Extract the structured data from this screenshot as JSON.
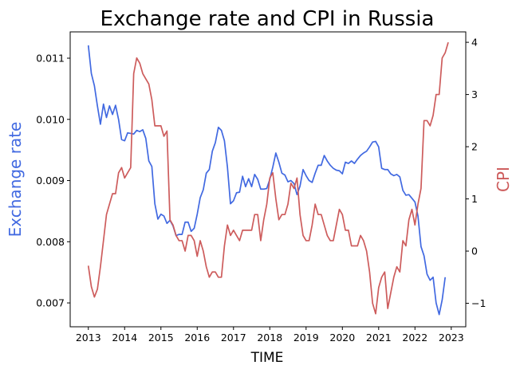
{
  "chart_data": {
    "type": "line",
    "title": "Exchange rate and CPI in Russia",
    "xlabel": "TIME",
    "ylabel_left": "Exchange rate",
    "ylabel_right": "CPI",
    "xlim": [
      2012.5,
      2023.4
    ],
    "ylim_left": [
      0.00661,
      0.01143
    ],
    "ylim_right": [
      -1.45,
      4.2
    ],
    "x_ticks": [
      "2013",
      "2014",
      "2015",
      "2016",
      "2017",
      "2018",
      "2019",
      "2020",
      "2021",
      "2022",
      "2023"
    ],
    "y_left_ticks": [
      "0.007",
      "0.008",
      "0.009",
      "0.010",
      "0.011"
    ],
    "y_right_ticks": [
      "−1",
      "0",
      "1",
      "2",
      "3",
      "4"
    ],
    "colors": {
      "left": "#4169e1",
      "right": "#cd5c5c"
    },
    "series": [
      {
        "axis": "left",
        "points": [
          [
            2013.0,
            0.01121
          ],
          [
            2013.083,
            0.01075
          ],
          [
            2013.167,
            0.01055
          ],
          [
            2013.25,
            0.01022
          ],
          [
            2013.333,
            0.00992
          ],
          [
            2013.417,
            0.01025
          ],
          [
            2013.5,
            0.01003
          ],
          [
            2013.583,
            0.01022
          ],
          [
            2013.667,
            0.01008
          ],
          [
            2013.75,
            0.01023
          ],
          [
            2013.833,
            0.01
          ],
          [
            2013.917,
            0.00967
          ],
          [
            2014.0,
            0.00965
          ],
          [
            2014.083,
            0.00978
          ],
          [
            2014.167,
            0.00977
          ],
          [
            2014.25,
            0.00976
          ],
          [
            2014.333,
            0.00982
          ],
          [
            2014.417,
            0.0098
          ],
          [
            2014.5,
            0.00983
          ],
          [
            2014.583,
            0.00969
          ],
          [
            2014.667,
            0.00932
          ],
          [
            2014.75,
            0.00923
          ],
          [
            2014.833,
            0.00862
          ],
          [
            2014.917,
            0.00837
          ],
          [
            2015.0,
            0.00845
          ],
          [
            2015.083,
            0.00842
          ],
          [
            2015.167,
            0.0083
          ],
          [
            2015.25,
            0.00835
          ],
          [
            2015.333,
            0.00826
          ],
          [
            2015.417,
            0.0081
          ],
          [
            2015.5,
            0.00812
          ],
          [
            2015.583,
            0.00812
          ],
          [
            2015.667,
            0.00832
          ],
          [
            2015.75,
            0.00832
          ],
          [
            2015.833,
            0.00817
          ],
          [
            2015.917,
            0.00822
          ],
          [
            2016.0,
            0.00845
          ],
          [
            2016.083,
            0.00872
          ],
          [
            2016.167,
            0.00885
          ],
          [
            2016.25,
            0.00912
          ],
          [
            2016.333,
            0.00918
          ],
          [
            2016.417,
            0.00948
          ],
          [
            2016.5,
            0.00962
          ],
          [
            2016.583,
            0.00987
          ],
          [
            2016.667,
            0.00982
          ],
          [
            2016.75,
            0.00965
          ],
          [
            2016.833,
            0.00922
          ],
          [
            2016.917,
            0.00862
          ],
          [
            2017.0,
            0.00867
          ],
          [
            2017.083,
            0.0088
          ],
          [
            2017.167,
            0.00881
          ],
          [
            2017.25,
            0.00907
          ],
          [
            2017.333,
            0.0089
          ],
          [
            2017.417,
            0.00903
          ],
          [
            2017.5,
            0.0089
          ],
          [
            2017.583,
            0.0091
          ],
          [
            2017.667,
            0.00902
          ],
          [
            2017.75,
            0.00886
          ],
          [
            2017.833,
            0.00886
          ],
          [
            2017.917,
            0.00887
          ],
          [
            2018.0,
            0.00902
          ],
          [
            2018.083,
            0.00922
          ],
          [
            2018.167,
            0.00945
          ],
          [
            2018.25,
            0.0093
          ],
          [
            2018.333,
            0.00912
          ],
          [
            2018.417,
            0.00909
          ],
          [
            2018.5,
            0.00898
          ],
          [
            2018.583,
            0.009
          ],
          [
            2018.667,
            0.00895
          ],
          [
            2018.75,
            0.00877
          ],
          [
            2018.833,
            0.00891
          ],
          [
            2018.917,
            0.00918
          ],
          [
            2019.0,
            0.00908
          ],
          [
            2019.083,
            0.009
          ],
          [
            2019.167,
            0.00897
          ],
          [
            2019.25,
            0.00912
          ],
          [
            2019.333,
            0.00925
          ],
          [
            2019.417,
            0.00925
          ],
          [
            2019.5,
            0.00941
          ],
          [
            2019.583,
            0.00932
          ],
          [
            2019.667,
            0.00925
          ],
          [
            2019.75,
            0.0092
          ],
          [
            2019.833,
            0.00917
          ],
          [
            2019.917,
            0.00916
          ],
          [
            2020.0,
            0.00911
          ],
          [
            2020.083,
            0.0093
          ],
          [
            2020.167,
            0.00928
          ],
          [
            2020.25,
            0.00932
          ],
          [
            2020.333,
            0.00928
          ],
          [
            2020.417,
            0.00935
          ],
          [
            2020.5,
            0.00941
          ],
          [
            2020.583,
            0.00945
          ],
          [
            2020.667,
            0.00948
          ],
          [
            2020.75,
            0.00955
          ],
          [
            2020.833,
            0.00963
          ],
          [
            2020.917,
            0.00964
          ],
          [
            2021.0,
            0.00955
          ],
          [
            2021.083,
            0.0092
          ],
          [
            2021.167,
            0.00918
          ],
          [
            2021.25,
            0.00918
          ],
          [
            2021.333,
            0.00911
          ],
          [
            2021.417,
            0.00908
          ],
          [
            2021.5,
            0.0091
          ],
          [
            2021.583,
            0.00906
          ],
          [
            2021.667,
            0.00884
          ],
          [
            2021.75,
            0.00876
          ],
          [
            2021.833,
            0.00877
          ],
          [
            2021.917,
            0.00871
          ],
          [
            2022.0,
            0.00865
          ],
          [
            2022.083,
            0.00842
          ],
          [
            2022.167,
            0.00792
          ],
          [
            2022.25,
            0.00777
          ],
          [
            2022.333,
            0.00747
          ],
          [
            2022.417,
            0.00737
          ],
          [
            2022.5,
            0.00742
          ],
          [
            2022.583,
            0.007
          ],
          [
            2022.667,
            0.00681
          ],
          [
            2022.75,
            0.00705
          ],
          [
            2022.833,
            0.00742
          ]
        ]
      },
      {
        "axis": "right",
        "points": [
          [
            2013.0,
            -0.28
          ],
          [
            2013.083,
            -0.68
          ],
          [
            2013.167,
            -0.88
          ],
          [
            2013.25,
            -0.73
          ],
          [
            2013.333,
            -0.3
          ],
          [
            2013.417,
            0.2
          ],
          [
            2013.5,
            0.7
          ],
          [
            2013.583,
            0.9
          ],
          [
            2013.667,
            1.1
          ],
          [
            2013.75,
            1.1
          ],
          [
            2013.833,
            1.5
          ],
          [
            2013.917,
            1.6
          ],
          [
            2014.0,
            1.4
          ],
          [
            2014.083,
            1.5
          ],
          [
            2014.167,
            1.6
          ],
          [
            2014.25,
            3.4
          ],
          [
            2014.333,
            3.7
          ],
          [
            2014.417,
            3.6
          ],
          [
            2014.5,
            3.4
          ],
          [
            2014.583,
            3.3
          ],
          [
            2014.667,
            3.2
          ],
          [
            2014.75,
            2.9
          ],
          [
            2014.833,
            2.4
          ],
          [
            2014.917,
            2.4
          ],
          [
            2015.0,
            2.4
          ],
          [
            2015.083,
            2.2
          ],
          [
            2015.167,
            2.3
          ],
          [
            2015.25,
            0.6
          ],
          [
            2015.333,
            0.5
          ],
          [
            2015.417,
            0.3
          ],
          [
            2015.5,
            0.2
          ],
          [
            2015.583,
            0.2
          ],
          [
            2015.667,
            0.0
          ],
          [
            2015.75,
            0.3
          ],
          [
            2015.833,
            0.3
          ],
          [
            2015.917,
            0.2
          ],
          [
            2016.0,
            -0.1
          ],
          [
            2016.083,
            0.2
          ],
          [
            2016.167,
            0.0
          ],
          [
            2016.25,
            -0.3
          ],
          [
            2016.333,
            -0.5
          ],
          [
            2016.417,
            -0.4
          ],
          [
            2016.5,
            -0.4
          ],
          [
            2016.583,
            -0.5
          ],
          [
            2016.667,
            -0.5
          ],
          [
            2016.75,
            0.1
          ],
          [
            2016.833,
            0.5
          ],
          [
            2016.917,
            0.3
          ],
          [
            2017.0,
            0.4
          ],
          [
            2017.083,
            0.3
          ],
          [
            2017.167,
            0.2
          ],
          [
            2017.25,
            0.4
          ],
          [
            2017.333,
            0.4
          ],
          [
            2017.417,
            0.4
          ],
          [
            2017.5,
            0.4
          ],
          [
            2017.583,
            0.7
          ],
          [
            2017.667,
            0.7
          ],
          [
            2017.75,
            0.2
          ],
          [
            2017.833,
            0.6
          ],
          [
            2017.917,
            0.9
          ],
          [
            2018.0,
            1.4
          ],
          [
            2018.083,
            1.5
          ],
          [
            2018.167,
            1.0
          ],
          [
            2018.25,
            0.6
          ],
          [
            2018.333,
            0.7
          ],
          [
            2018.417,
            0.7
          ],
          [
            2018.5,
            0.9
          ],
          [
            2018.583,
            1.3
          ],
          [
            2018.667,
            1.2
          ],
          [
            2018.75,
            1.4
          ],
          [
            2018.833,
            0.7
          ],
          [
            2018.917,
            0.3
          ],
          [
            2019.0,
            0.2
          ],
          [
            2019.083,
            0.2
          ],
          [
            2019.167,
            0.5
          ],
          [
            2019.25,
            0.9
          ],
          [
            2019.333,
            0.7
          ],
          [
            2019.417,
            0.7
          ],
          [
            2019.5,
            0.5
          ],
          [
            2019.583,
            0.3
          ],
          [
            2019.667,
            0.2
          ],
          [
            2019.75,
            0.2
          ],
          [
            2019.833,
            0.5
          ],
          [
            2019.917,
            0.8
          ],
          [
            2020.0,
            0.7
          ],
          [
            2020.083,
            0.4
          ],
          [
            2020.167,
            0.4
          ],
          [
            2020.25,
            0.1
          ],
          [
            2020.333,
            0.1
          ],
          [
            2020.417,
            0.1
          ],
          [
            2020.5,
            0.3
          ],
          [
            2020.583,
            0.2
          ],
          [
            2020.667,
            0.0
          ],
          [
            2020.75,
            -0.4
          ],
          [
            2020.833,
            -1.0
          ],
          [
            2020.917,
            -1.2
          ],
          [
            2021.0,
            -0.7
          ],
          [
            2021.083,
            -0.5
          ],
          [
            2021.167,
            -0.4
          ],
          [
            2021.25,
            -1.1
          ],
          [
            2021.333,
            -0.8
          ],
          [
            2021.417,
            -0.5
          ],
          [
            2021.5,
            -0.3
          ],
          [
            2021.583,
            -0.4
          ],
          [
            2021.667,
            0.2
          ],
          [
            2021.75,
            0.1
          ],
          [
            2021.833,
            0.6
          ],
          [
            2021.917,
            0.8
          ],
          [
            2022.0,
            0.5
          ],
          [
            2022.083,
            0.9
          ],
          [
            2022.167,
            1.2
          ],
          [
            2022.25,
            2.5
          ],
          [
            2022.333,
            2.5
          ],
          [
            2022.417,
            2.4
          ],
          [
            2022.5,
            2.6
          ],
          [
            2022.583,
            3.0
          ],
          [
            2022.667,
            3.0
          ],
          [
            2022.75,
            3.7
          ],
          [
            2022.833,
            3.8
          ],
          [
            2022.917,
            4.0
          ]
        ]
      }
    ]
  }
}
